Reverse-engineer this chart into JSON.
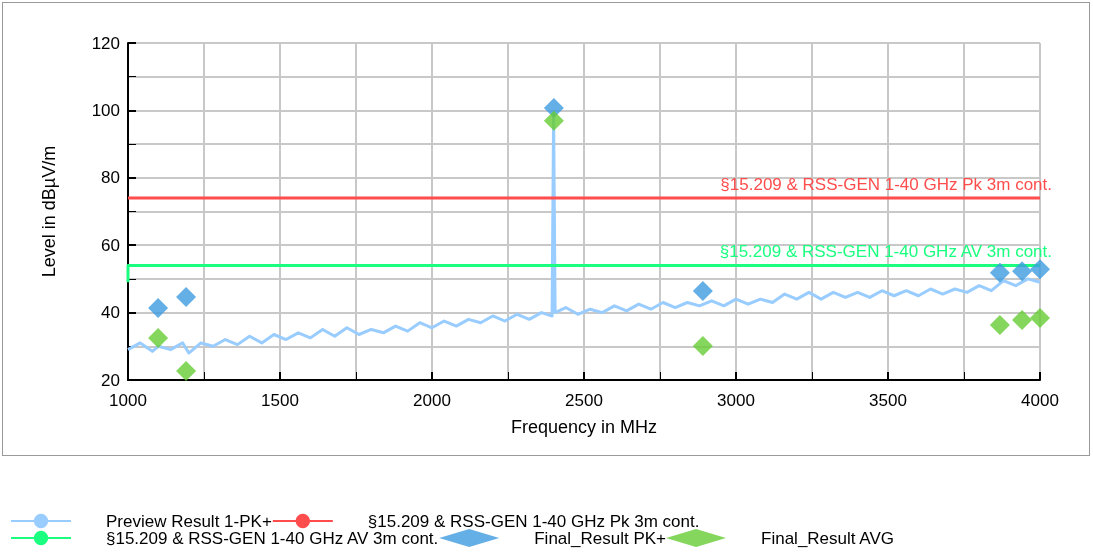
{
  "chart_data": {
    "type": "line",
    "xlabel": "Frequency in MHz",
    "ylabel": "Level in dBµV/m",
    "xlim": [
      1000,
      4000
    ],
    "xticks": [
      1000,
      1500,
      2000,
      2500,
      3000,
      3500,
      4000
    ],
    "ylim": [
      20,
      120
    ],
    "yticks": [
      20,
      40,
      60,
      80,
      100,
      120
    ],
    "grid": true,
    "legend": "bottom",
    "series": [
      {
        "name": "Preview Result 1-PK+",
        "type": "line",
        "color": "#99ccff",
        "marker": "none",
        "x": [
          1000,
          1040,
          1080,
          1100,
          1140,
          1180,
          1200,
          1240,
          1280,
          1320,
          1360,
          1400,
          1440,
          1480,
          1520,
          1560,
          1600,
          1640,
          1680,
          1720,
          1760,
          1800,
          1840,
          1880,
          1920,
          1960,
          2000,
          2040,
          2080,
          2120,
          2160,
          2200,
          2240,
          2280,
          2320,
          2360,
          2395,
          2400,
          2405,
          2440,
          2480,
          2520,
          2560,
          2600,
          2640,
          2680,
          2720,
          2760,
          2800,
          2840,
          2880,
          2920,
          2960,
          3000,
          3040,
          3080,
          3120,
          3160,
          3200,
          3240,
          3280,
          3320,
          3360,
          3400,
          3440,
          3480,
          3520,
          3560,
          3600,
          3640,
          3680,
          3720,
          3760,
          3800,
          3840,
          3880,
          3920,
          3960,
          4000
        ],
        "values": [
          29,
          31,
          28.5,
          30,
          29,
          31,
          28,
          31,
          30,
          32,
          30.5,
          33,
          31,
          33.5,
          32,
          34,
          32.5,
          35,
          33,
          35.5,
          33.5,
          35,
          34,
          36,
          34.5,
          37,
          35.5,
          37.5,
          36,
          38,
          37,
          39,
          37.5,
          39.5,
          38,
          40,
          39,
          99,
          40,
          41.5,
          39.5,
          41,
          40,
          42,
          40.5,
          42.5,
          41,
          43,
          41.5,
          43,
          42,
          43.5,
          42,
          44,
          42.5,
          44,
          43,
          45.5,
          44,
          46,
          44,
          46,
          44.5,
          46,
          44.5,
          46.5,
          45,
          46.5,
          45,
          47,
          45.5,
          47,
          46,
          48,
          46.5,
          49.5,
          48,
          50,
          49
        ]
      },
      {
        "name": "§15.209 & RSS-GEN 1-40 GHz Pk 3m cont.",
        "type": "line",
        "color": "#ff4d4d",
        "marker": "none",
        "x": [
          1000,
          4000
        ],
        "values": [
          74,
          74
        ]
      },
      {
        "name": "§15.209 & RSS-GEN 1-40 GHz AV 3m cont.",
        "type": "line",
        "color": "#1aff80",
        "marker": "none",
        "x": [
          1000,
          1000,
          4000
        ],
        "values": [
          49,
          54,
          54
        ]
      },
      {
        "name": "Final_Result PK+",
        "type": "scatter",
        "color": "#3d9be0",
        "marker": "diamond",
        "x": [
          1099,
          1191,
          2401,
          2891,
          3868,
          3941,
          4000
        ],
        "values": [
          41.4,
          44.6,
          100.7,
          46.4,
          51.8,
          52.3,
          52.9
        ]
      },
      {
        "name": "Final_Result AVG",
        "type": "scatter",
        "color": "#66cc33",
        "marker": "diamond",
        "x": [
          1099,
          1191,
          2401,
          2891,
          3868,
          3941,
          4000
        ],
        "values": [
          32.5,
          22.7,
          96.9,
          30.1,
          36.3,
          37.8,
          38.4
        ]
      }
    ]
  }
}
